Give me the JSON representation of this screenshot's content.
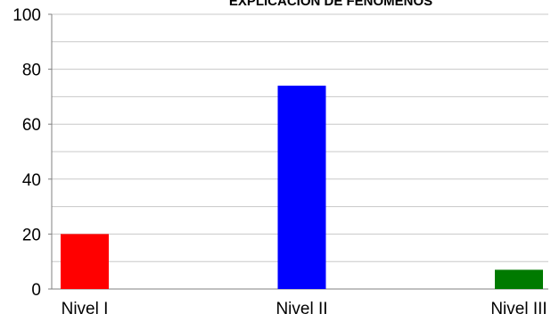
{
  "chart_data": {
    "type": "bar",
    "title": "EXPLICACIÓN DE FENÓMENOS",
    "categories": [
      "Nivel I",
      "Nivel II",
      "Nivel III"
    ],
    "values": [
      20,
      74,
      7
    ],
    "bar_colors": [
      "#ff0000",
      "#0000ff",
      "#007a00"
    ],
    "ylim": [
      0,
      100
    ],
    "yticks": [
      0,
      20,
      40,
      60,
      80,
      100
    ],
    "minor_gridlines": true,
    "legend": "none",
    "xlabel": "",
    "ylabel": ""
  },
  "colors": {
    "gridline": "#c8c8c8",
    "axis": "#808080",
    "background": "#ffffff"
  }
}
